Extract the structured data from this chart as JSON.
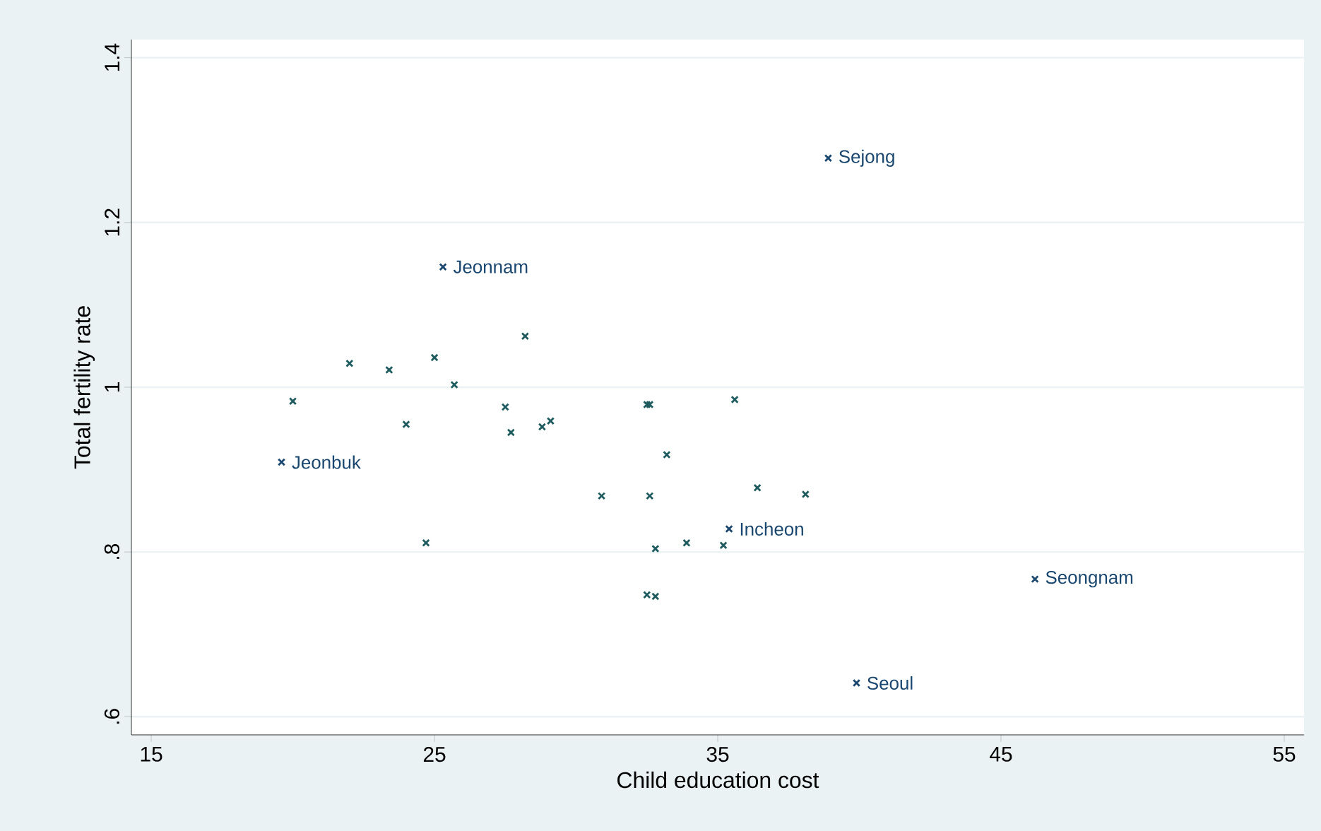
{
  "chart_data": {
    "type": "scatter",
    "xlabel": "Child education cost",
    "ylabel": "Total fertility rate",
    "xlim": [
      14.3,
      55.7
    ],
    "ylim": [
      0.578,
      1.422
    ],
    "xticks": [
      15,
      25,
      35,
      45,
      55
    ],
    "yticks": [
      {
        "value": 0.6,
        "label": ".6"
      },
      {
        "value": 0.8,
        "label": ".8"
      },
      {
        "value": 1,
        "label": "1"
      },
      {
        "value": 1.2,
        "label": "1.2"
      },
      {
        "value": 1.4,
        "label": "1.4"
      }
    ],
    "grid": "y",
    "marker": "cross",
    "series": [
      {
        "color": "#1e5b5e",
        "x": [
          20.0,
          22.0,
          23.4,
          24.0,
          24.7,
          25.0,
          25.7,
          28.2,
          27.5,
          27.7,
          28.8,
          29.1,
          30.9,
          32.5,
          32.6,
          33.2,
          32.6,
          35.6,
          36.4,
          38.1,
          32.8,
          33.9,
          35.2,
          32.5,
          32.8
        ],
        "values": [
          0.983,
          1.029,
          1.021,
          0.955,
          0.811,
          1.036,
          1.003,
          1.062,
          0.976,
          0.945,
          0.952,
          0.959,
          0.868,
          0.979,
          0.979,
          0.918,
          0.868,
          0.985,
          0.878,
          0.87,
          0.804,
          0.811,
          0.808,
          0.748,
          0.746
        ]
      },
      {
        "color": "#1a476f",
        "x": [
          38.9,
          25.3,
          19.6,
          35.4,
          46.2,
          39.9
        ],
        "values": [
          1.278,
          1.146,
          0.909,
          0.828,
          0.767,
          0.641
        ]
      }
    ],
    "annotations": [
      {
        "text": "Sejong",
        "x": 38.9,
        "y": 1.278
      },
      {
        "text": "Jeonnam",
        "x": 25.3,
        "y": 1.146
      },
      {
        "text": "Jeonbuk",
        "x": 19.6,
        "y": 0.909
      },
      {
        "text": "Incheon",
        "x": 35.4,
        "y": 0.828
      },
      {
        "text": "Seongnam",
        "x": 46.2,
        "y": 0.767
      },
      {
        "text": "Seoul",
        "x": 39.9,
        "y": 0.641
      }
    ]
  }
}
